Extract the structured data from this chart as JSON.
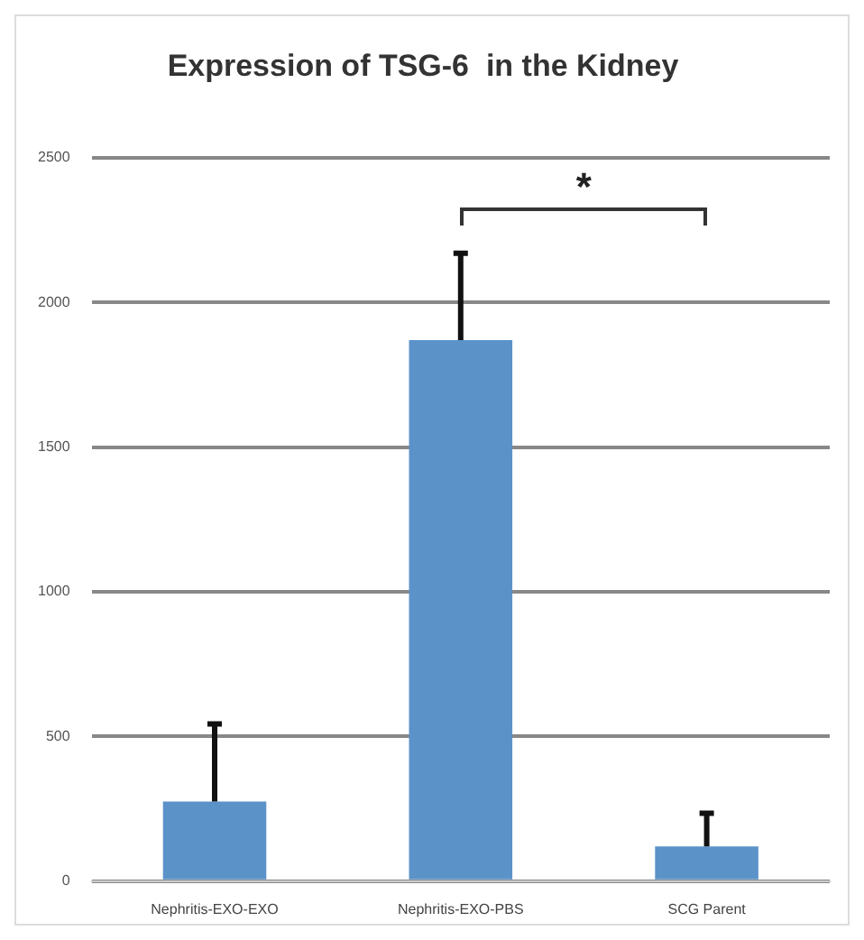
{
  "chart_data": {
    "type": "bar",
    "title": "Expression of TSG-6  in the Kidney",
    "categories": [
      "Nephritis-EXO-EXO",
      "Nephritis-EXO-PBS",
      "SCG Parent"
    ],
    "values": [
      275,
      1870,
      120
    ],
    "errors": [
      [
        275,
        543
      ],
      [
        1870,
        2170
      ],
      [
        120,
        235
      ]
    ],
    "color": "#5b93c9",
    "ylim": [
      0,
      2500
    ],
    "yticks": [
      0,
      500,
      1000,
      1500,
      2000,
      2500
    ],
    "grid": "y",
    "annotations": [
      "*"
    ]
  }
}
